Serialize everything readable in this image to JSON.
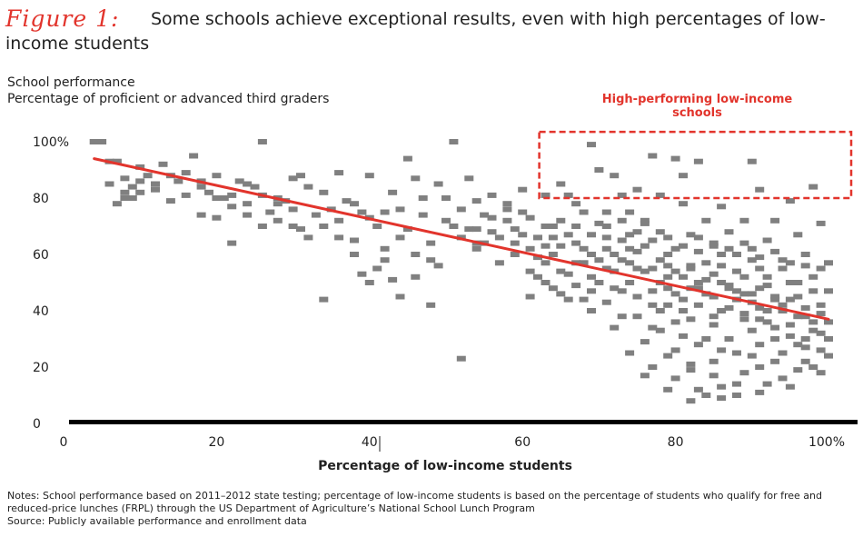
{
  "figure_label": "Figure 1:",
  "title": "Some schools achieve exceptional results, even with high percentages of low-income students",
  "notes": [
    "Notes: School performance based on 2011–2012 state testing; percentage of low-income students is based on the percentage of students who qualify for free and reduced-price lunches (FRPL) through the US Department of Agriculture’s National School Lunch Program",
    "Source: Publicly available performance and enrollment data"
  ],
  "colors": {
    "points": "#808080",
    "trend": "#e2342c",
    "highlight": "#e2342c",
    "axis": "#000000"
  },
  "chart_data": {
    "type": "scatter",
    "ylabel_lines": [
      "School performance",
      "Percentage of proficient or advanced third graders"
    ],
    "xlabel": "Percentage of low-income students",
    "xlim": [
      0,
      100
    ],
    "ylim": [
      0,
      100
    ],
    "x_ticks": [
      "0",
      "20",
      "40",
      "60",
      "80",
      "100%"
    ],
    "y_ticks": [
      "0",
      "20",
      "40",
      "60",
      "80",
      "100%"
    ],
    "grid": false,
    "trend_line": {
      "x": [
        4,
        100
      ],
      "y": [
        94,
        37
      ]
    },
    "highlight_region": {
      "label": "High-performing low-income schools",
      "x_range": [
        61,
        100
      ],
      "y_range": [
        80,
        99
      ]
    },
    "points": [
      [
        4,
        100
      ],
      [
        5,
        100
      ],
      [
        6,
        93
      ],
      [
        7,
        93
      ],
      [
        7,
        78
      ],
      [
        8,
        87
      ],
      [
        8,
        82
      ],
      [
        9,
        80
      ],
      [
        10,
        86
      ],
      [
        10,
        91
      ],
      [
        11,
        88
      ],
      [
        12,
        85
      ],
      [
        13,
        92
      ],
      [
        14,
        88
      ],
      [
        15,
        86
      ],
      [
        16,
        89
      ],
      [
        17,
        95
      ],
      [
        18,
        86
      ],
      [
        18,
        84
      ],
      [
        19,
        82
      ],
      [
        20,
        88
      ],
      [
        20,
        73
      ],
      [
        21,
        80
      ],
      [
        22,
        81
      ],
      [
        22,
        64
      ],
      [
        23,
        86
      ],
      [
        24,
        85
      ],
      [
        24,
        78
      ],
      [
        25,
        84
      ],
      [
        26,
        100
      ],
      [
        26,
        81
      ],
      [
        27,
        75
      ],
      [
        28,
        80
      ],
      [
        28,
        72
      ],
      [
        29,
        79
      ],
      [
        30,
        87
      ],
      [
        30,
        70
      ],
      [
        31,
        88
      ],
      [
        31,
        69
      ],
      [
        32,
        84
      ],
      [
        33,
        74
      ],
      [
        34,
        82
      ],
      [
        34,
        44
      ],
      [
        35,
        76
      ],
      [
        36,
        89
      ],
      [
        36,
        66
      ],
      [
        37,
        79
      ],
      [
        38,
        78
      ],
      [
        38,
        60
      ],
      [
        39,
        75
      ],
      [
        39,
        53
      ],
      [
        40,
        88
      ],
      [
        40,
        73
      ],
      [
        41,
        70
      ],
      [
        41,
        55
      ],
      [
        42,
        75
      ],
      [
        42,
        62
      ],
      [
        43,
        82
      ],
      [
        43,
        51
      ],
      [
        44,
        76
      ],
      [
        44,
        45
      ],
      [
        45,
        94
      ],
      [
        45,
        69
      ],
      [
        46,
        87
      ],
      [
        46,
        60
      ],
      [
        47,
        80
      ],
      [
        47,
        74
      ],
      [
        48,
        42
      ],
      [
        48,
        64
      ],
      [
        49,
        85
      ],
      [
        49,
        56
      ],
      [
        50,
        72
      ],
      [
        51,
        100
      ],
      [
        51,
        70
      ],
      [
        52,
        23
      ],
      [
        52,
        76
      ],
      [
        53,
        69
      ],
      [
        53,
        87
      ],
      [
        54,
        64
      ],
      [
        54,
        69
      ],
      [
        55,
        74
      ],
      [
        55,
        64
      ],
      [
        56,
        73
      ],
      [
        57,
        66
      ],
      [
        57,
        57
      ],
      [
        58,
        76
      ],
      [
        59,
        64
      ],
      [
        59,
        69
      ],
      [
        60,
        83
      ],
      [
        60,
        75
      ],
      [
        61,
        62
      ],
      [
        61,
        54
      ],
      [
        62,
        59
      ],
      [
        62,
        52
      ],
      [
        63,
        63
      ],
      [
        63,
        81
      ],
      [
        64,
        70
      ],
      [
        64,
        66
      ],
      [
        65,
        85
      ],
      [
        65,
        54
      ],
      [
        66,
        81
      ],
      [
        66,
        53
      ],
      [
        67,
        78
      ],
      [
        67,
        57
      ],
      [
        68,
        75
      ],
      [
        68,
        62
      ],
      [
        68,
        44
      ],
      [
        69,
        99
      ],
      [
        69,
        52
      ],
      [
        70,
        90
      ],
      [
        70,
        71
      ],
      [
        71,
        70
      ],
      [
        71,
        66
      ],
      [
        71,
        55
      ],
      [
        72,
        88
      ],
      [
        72,
        48
      ],
      [
        73,
        81
      ],
      [
        73,
        65
      ],
      [
        73,
        47
      ],
      [
        74,
        75
      ],
      [
        74,
        62
      ],
      [
        74,
        50
      ],
      [
        75,
        83
      ],
      [
        75,
        55
      ],
      [
        75,
        38
      ],
      [
        76,
        71
      ],
      [
        76,
        54
      ],
      [
        77,
        95
      ],
      [
        77,
        47
      ],
      [
        77,
        34
      ],
      [
        78,
        81
      ],
      [
        78,
        68
      ],
      [
        78,
        33
      ],
      [
        79,
        60
      ],
      [
        79,
        52
      ],
      [
        79,
        42
      ],
      [
        80,
        94
      ],
      [
        80,
        26
      ],
      [
        80,
        46
      ],
      [
        81,
        88
      ],
      [
        81,
        78
      ],
      [
        81,
        40
      ],
      [
        81,
        31
      ],
      [
        82,
        67
      ],
      [
        82,
        56
      ],
      [
        82,
        37
      ],
      [
        82,
        19
      ],
      [
        83,
        93
      ],
      [
        83,
        61
      ],
      [
        83,
        48
      ],
      [
        83,
        28
      ],
      [
        84,
        72
      ],
      [
        84,
        51
      ],
      [
        84,
        10
      ],
      [
        85,
        45
      ],
      [
        85,
        63
      ],
      [
        85,
        35
      ],
      [
        85,
        22
      ],
      [
        86,
        77
      ],
      [
        86,
        56
      ],
      [
        86,
        40
      ],
      [
        86,
        13
      ],
      [
        87,
        68
      ],
      [
        87,
        48
      ],
      [
        87,
        30
      ],
      [
        88,
        60
      ],
      [
        88,
        44
      ],
      [
        88,
        25
      ],
      [
        89,
        72
      ],
      [
        89,
        52
      ],
      [
        89,
        37
      ],
      [
        89,
        18
      ],
      [
        90,
        93
      ],
      [
        90,
        62
      ],
      [
        90,
        46
      ],
      [
        90,
        33
      ],
      [
        91,
        83
      ],
      [
        91,
        55
      ],
      [
        91,
        41
      ],
      [
        91,
        28
      ],
      [
        92,
        65
      ],
      [
        92,
        49
      ],
      [
        92,
        36
      ],
      [
        92,
        14
      ],
      [
        93,
        72
      ],
      [
        93,
        44
      ],
      [
        93,
        30
      ],
      [
        94,
        58
      ],
      [
        94,
        40
      ],
      [
        94,
        25
      ],
      [
        95,
        79
      ],
      [
        95,
        50
      ],
      [
        95,
        35
      ],
      [
        96,
        67
      ],
      [
        96,
        45
      ],
      [
        96,
        19
      ],
      [
        97,
        56
      ],
      [
        97,
        38
      ],
      [
        97,
        27
      ],
      [
        98,
        84
      ],
      [
        98,
        47
      ],
      [
        98,
        33
      ],
      [
        99,
        71
      ],
      [
        99,
        42
      ],
      [
        99,
        18
      ],
      [
        100,
        57
      ],
      [
        100,
        36
      ],
      [
        100,
        24
      ],
      [
        64,
        48
      ],
      [
        66,
        44
      ],
      [
        69,
        40
      ],
      [
        72,
        34
      ],
      [
        76,
        29
      ],
      [
        79,
        24
      ],
      [
        82,
        21
      ],
      [
        85,
        17
      ],
      [
        88,
        14
      ],
      [
        91,
        20
      ],
      [
        94,
        16
      ],
      [
        97,
        22
      ],
      [
        100,
        30
      ],
      [
        78,
        40
      ],
      [
        80,
        36
      ],
      [
        84,
        30
      ],
      [
        86,
        26
      ],
      [
        90,
        24
      ],
      [
        93,
        22
      ],
      [
        96,
        28
      ],
      [
        99,
        26
      ],
      [
        70,
        58
      ],
      [
        72,
        60
      ],
      [
        74,
        57
      ],
      [
        76,
        63
      ],
      [
        78,
        58
      ],
      [
        80,
        62
      ],
      [
        82,
        55
      ],
      [
        84,
        57
      ],
      [
        86,
        60
      ],
      [
        88,
        54
      ],
      [
        90,
        58
      ],
      [
        92,
        52
      ],
      [
        94,
        55
      ],
      [
        96,
        50
      ],
      [
        98,
        52
      ],
      [
        100,
        47
      ],
      [
        75,
        45
      ],
      [
        77,
        42
      ],
      [
        79,
        48
      ],
      [
        81,
        44
      ],
      [
        83,
        42
      ],
      [
        85,
        38
      ],
      [
        87,
        41
      ],
      [
        89,
        39
      ],
      [
        91,
        37
      ],
      [
        93,
        34
      ],
      [
        95,
        31
      ],
      [
        97,
        30
      ],
      [
        99,
        32
      ],
      [
        62,
        66
      ],
      [
        64,
        60
      ],
      [
        66,
        67
      ],
      [
        68,
        57
      ],
      [
        70,
        50
      ],
      [
        72,
        54
      ],
      [
        74,
        67
      ],
      [
        76,
        72
      ],
      [
        78,
        50
      ],
      [
        80,
        54
      ],
      [
        82,
        48
      ],
      [
        84,
        46
      ],
      [
        86,
        50
      ],
      [
        88,
        47
      ],
      [
        90,
        43
      ],
      [
        92,
        40
      ],
      [
        94,
        42
      ],
      [
        96,
        38
      ],
      [
        98,
        36
      ],
      [
        63,
        57
      ],
      [
        65,
        63
      ],
      [
        67,
        64
      ],
      [
        69,
        60
      ],
      [
        71,
        62
      ],
      [
        73,
        58
      ],
      [
        75,
        61
      ],
      [
        77,
        55
      ],
      [
        79,
        56
      ],
      [
        81,
        52
      ],
      [
        83,
        50
      ],
      [
        85,
        53
      ],
      [
        87,
        49
      ],
      [
        89,
        46
      ],
      [
        91,
        48
      ],
      [
        93,
        45
      ],
      [
        95,
        44
      ],
      [
        97,
        41
      ],
      [
        99,
        39
      ],
      [
        54,
        79
      ],
      [
        56,
        81
      ],
      [
        58,
        78
      ],
      [
        59,
        60
      ],
      [
        61,
        73
      ],
      [
        63,
        70
      ],
      [
        65,
        72
      ],
      [
        67,
        70
      ],
      [
        69,
        67
      ],
      [
        71,
        75
      ],
      [
        73,
        72
      ],
      [
        75,
        68
      ],
      [
        77,
        65
      ],
      [
        79,
        66
      ],
      [
        81,
        63
      ],
      [
        83,
        66
      ],
      [
        85,
        64
      ],
      [
        87,
        62
      ],
      [
        89,
        64
      ],
      [
        91,
        59
      ],
      [
        93,
        61
      ],
      [
        95,
        57
      ],
      [
        97,
        60
      ],
      [
        99,
        55
      ],
      [
        74,
        25
      ],
      [
        77,
        20
      ],
      [
        80,
        16
      ],
      [
        83,
        12
      ],
      [
        86,
        9
      ],
      [
        88,
        10
      ],
      [
        91,
        11
      ],
      [
        95,
        13
      ],
      [
        98,
        20
      ],
      [
        82,
        8
      ],
      [
        79,
        12
      ],
      [
        76,
        17
      ],
      [
        73,
        38
      ],
      [
        71,
        43
      ],
      [
        69,
        47
      ],
      [
        67,
        49
      ],
      [
        65,
        46
      ],
      [
        63,
        50
      ],
      [
        61,
        45
      ],
      [
        60,
        67
      ],
      [
        58,
        72
      ],
      [
        56,
        68
      ],
      [
        54,
        62
      ],
      [
        52,
        66
      ],
      [
        50,
        80
      ],
      [
        48,
        58
      ],
      [
        46,
        52
      ],
      [
        44,
        66
      ],
      [
        42,
        58
      ],
      [
        40,
        50
      ],
      [
        38,
        65
      ],
      [
        36,
        72
      ],
      [
        34,
        70
      ],
      [
        32,
        66
      ],
      [
        30,
        76
      ],
      [
        28,
        78
      ],
      [
        26,
        70
      ],
      [
        24,
        74
      ],
      [
        22,
        77
      ],
      [
        20,
        80
      ],
      [
        18,
        74
      ],
      [
        16,
        81
      ],
      [
        14,
        79
      ],
      [
        12,
        83
      ],
      [
        10,
        82
      ],
      [
        9,
        84
      ],
      [
        8,
        80
      ],
      [
        6,
        85
      ]
    ]
  }
}
